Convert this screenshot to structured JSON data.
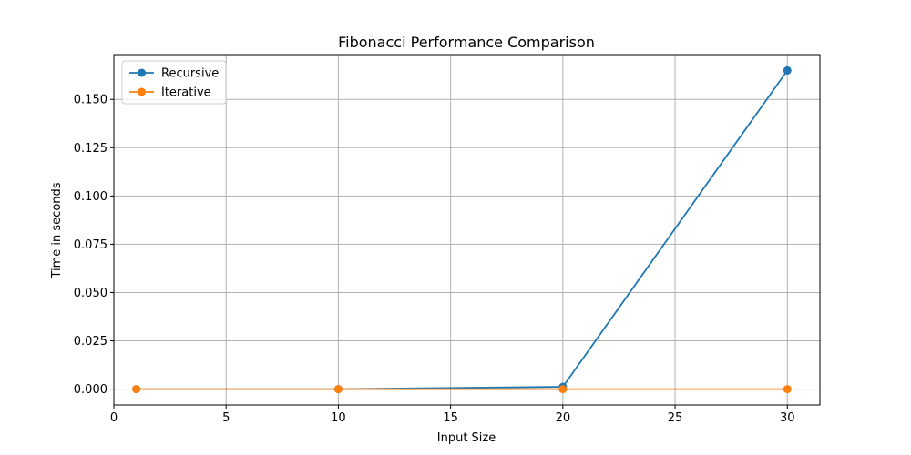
{
  "chart_data": {
    "type": "line",
    "title": "Fibonacci Performance Comparison",
    "xlabel": "Input Size",
    "ylabel": "Time in seconds",
    "xlim": [
      0,
      31.45
    ],
    "ylim": [
      -0.0082,
      0.1732
    ],
    "xticks": [
      0,
      5,
      10,
      15,
      20,
      25,
      30
    ],
    "yticks": [
      0.0,
      0.025,
      0.05,
      0.075,
      0.1,
      0.125,
      0.15
    ],
    "ytick_labels": [
      "0.000",
      "0.025",
      "0.050",
      "0.075",
      "0.100",
      "0.125",
      "0.150"
    ],
    "grid": true,
    "legend_position": "top-left",
    "series": [
      {
        "name": "Recursive",
        "color": "#1f77b4",
        "x": [
          1,
          10,
          20,
          30
        ],
        "y": [
          0.0,
          0.0,
          0.0012,
          0.165
        ]
      },
      {
        "name": "Iterative",
        "color": "#ff7f0e",
        "x": [
          1,
          10,
          20,
          30
        ],
        "y": [
          0.0,
          0.0,
          0.0,
          0.0
        ]
      }
    ]
  }
}
